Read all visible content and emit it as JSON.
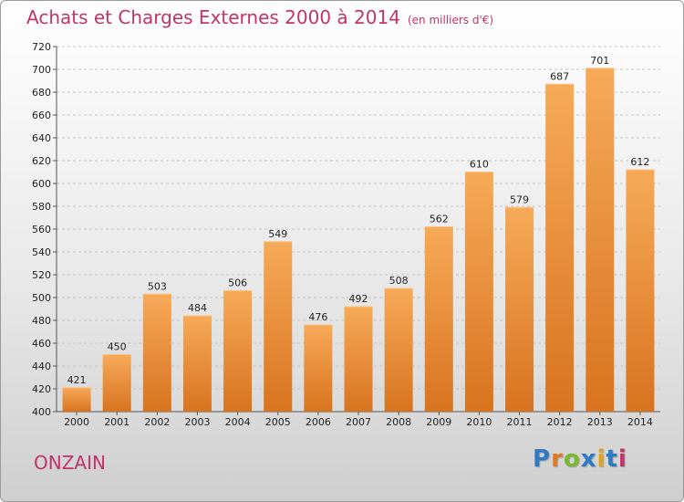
{
  "title": "Achats et Charges Externes 2000 à 2014",
  "unit": "(en milliers d'€)",
  "commune": "ONZAIN",
  "logo": {
    "p": "P",
    "r": "r",
    "o": "o",
    "x": "x",
    "i1": "i",
    "t": "t",
    "i2": "i"
  },
  "colors": {
    "bar_top": "#f6aa58",
    "bar_bottom": "#d8731f",
    "title": "#c0346a"
  },
  "chart_data": {
    "type": "bar",
    "categories": [
      "2000",
      "2001",
      "2002",
      "2003",
      "2004",
      "2005",
      "2006",
      "2007",
      "2008",
      "2009",
      "2010",
      "2011",
      "2012",
      "2013",
      "2014"
    ],
    "values": [
      421,
      450,
      503,
      484,
      506,
      549,
      476,
      492,
      508,
      562,
      610,
      579,
      687,
      701,
      612
    ],
    "ylim": [
      400,
      720
    ],
    "yticks": [
      400,
      420,
      440,
      460,
      480,
      500,
      520,
      540,
      560,
      580,
      600,
      620,
      640,
      660,
      680,
      700,
      720
    ],
    "grid": true
  }
}
